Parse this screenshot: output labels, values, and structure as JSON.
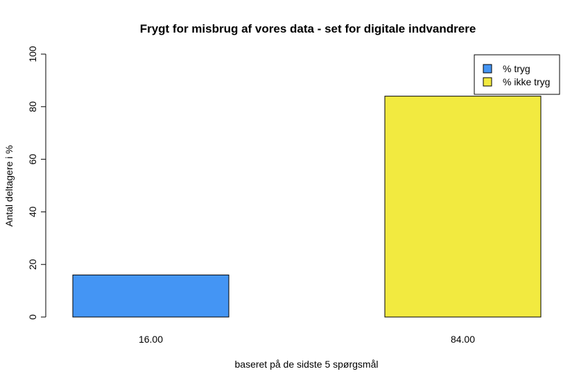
{
  "chart_data": {
    "type": "bar",
    "title": "Frygt for misbrug af vores data - set for digitale indvandrere",
    "xlabel": "baseret på de sidste 5 spørgsmål",
    "ylabel": "Antal deltagere i %",
    "ylim": [
      0,
      100
    ],
    "yticks": [
      0,
      20,
      40,
      60,
      80,
      100
    ],
    "categories": [
      "16.00",
      "84.00"
    ],
    "values": [
      16,
      84
    ],
    "colors": [
      "#4495f4",
      "#f2ea40"
    ],
    "legend": {
      "position": "top-right",
      "entries": [
        {
          "label": "% tryg",
          "color": "#4495f4"
        },
        {
          "label": "% ikke tryg",
          "color": "#f2ea40"
        }
      ]
    },
    "grid": false
  }
}
